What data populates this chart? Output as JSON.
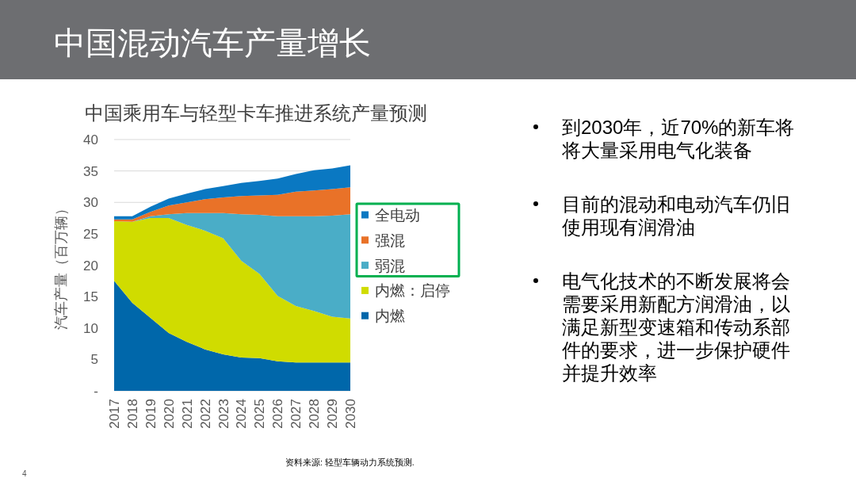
{
  "chart_data": [
    {
      "type": "area",
      "title": "中国混动汽车产量增长",
      "subtitle": "中国乘用车与轻型卡车推进系统产量预测",
      "ylabel": "汽车产量（百万辆）",
      "categories": [
        "2017",
        "2018",
        "2019",
        "2020",
        "2021",
        "2022",
        "2023",
        "2024",
        "2025",
        "2026",
        "2027",
        "2028",
        "2029",
        "2030"
      ],
      "stacked": true,
      "series": [
        {
          "name": "内燃",
          "color": "#0067aa",
          "values": [
            17.5,
            14.0,
            11.6,
            9.2,
            7.8,
            6.6,
            5.8,
            5.3,
            5.2,
            4.7,
            4.5,
            4.5,
            4.5,
            4.5
          ]
        },
        {
          "name": "内燃：启停",
          "color": "#d0dc00",
          "values": [
            9.5,
            12.9,
            15.9,
            18.3,
            18.6,
            18.9,
            18.5,
            15.4,
            13.4,
            10.4,
            9.0,
            8.2,
            7.3,
            7.0
          ]
        },
        {
          "name": "弱混",
          "color": "#4aadc7",
          "values": [
            0,
            0,
            0.3,
            0.6,
            1.9,
            2.8,
            4.0,
            7.4,
            9.4,
            12.7,
            14.3,
            15.1,
            16.1,
            16.6
          ]
        },
        {
          "name": "强混",
          "color": "#e97228",
          "values": [
            0.3,
            0.4,
            0.7,
            1.4,
            1.7,
            2.2,
            2.5,
            2.9,
            3.1,
            3.4,
            3.9,
            4.1,
            4.2,
            4.3
          ]
        },
        {
          "name": "全电动",
          "color": "#0a78c2",
          "values": [
            0.5,
            0.5,
            0.8,
            1.1,
            1.4,
            1.6,
            1.8,
            2.1,
            2.3,
            2.6,
            2.8,
            3.2,
            3.3,
            3.5
          ]
        }
      ],
      "ylim": [
        0,
        40
      ],
      "yticks": [
        {
          "value": 0,
          "label": "-"
        },
        5,
        10,
        15,
        20,
        25,
        30,
        35,
        40
      ],
      "grid": "y",
      "legend": "right",
      "annotations": [
        "资料来源: 轻型车辆动力系统预测.",
        "4"
      ]
    },
    {
      "type": "other",
      "annotations": [
        "到2030年，近70%的新车将将大量采用电气化装备",
        "目前的混动和电动汽车仍旧使用现有润滑油",
        "电气化技术的不断发展将会需要采用新配方润滑油，以满足新型变速箱和传动系部件的要求，进一步保护硬件并提升效率"
      ]
    }
  ]
}
